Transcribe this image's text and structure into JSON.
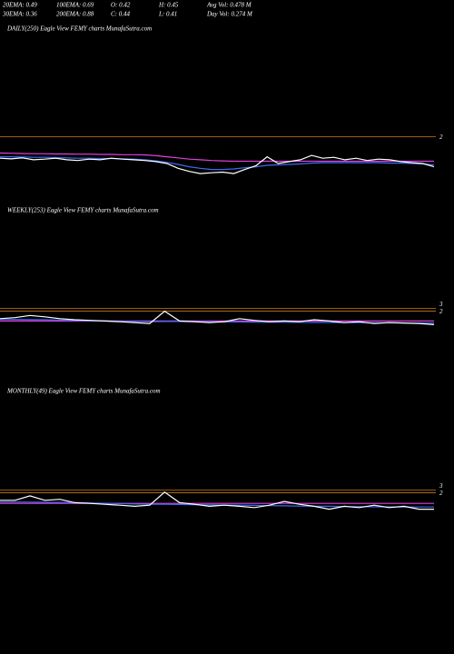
{
  "header": {
    "row1": [
      "20EMA: 0.49",
      "100EMA: 0.69",
      "O: 0.42",
      "H: 0.45",
      "Avg Vol: 0.478  M"
    ],
    "row2": [
      "30EMA: 0.36",
      "200EMA: 0.88",
      "C: 0.44",
      "L: 0.41",
      "Day Vol: 0.274  M"
    ]
  },
  "chart_data": [
    {
      "type": "line",
      "title": "DAILY(250) Eagle   View  FEMY charts MunafaSutra.com",
      "log_scale": true,
      "ylim": [
        0.06,
        800
      ],
      "yticks": [
        2
      ],
      "grid": true,
      "grid_color": "#c87a1e",
      "series": [
        {
          "color": "#e040e0",
          "values": [
            0.75,
            0.74,
            0.73,
            0.72,
            0.72,
            0.71,
            0.71,
            0.7,
            0.7,
            0.69,
            0.69,
            0.68,
            0.68,
            0.67,
            0.64,
            0.6,
            0.56,
            0.52,
            0.5,
            0.48,
            0.47,
            0.46,
            0.46,
            0.46,
            0.46,
            0.46,
            0.46,
            0.46,
            0.46,
            0.46,
            0.46,
            0.46,
            0.46,
            0.46,
            0.46,
            0.46,
            0.46,
            0.46,
            0.46,
            0.46
          ]
        },
        {
          "color": "#3a6df0",
          "values": [
            0.6,
            0.6,
            0.59,
            0.58,
            0.58,
            0.57,
            0.56,
            0.55,
            0.55,
            0.54,
            0.54,
            0.53,
            0.52,
            0.5,
            0.47,
            0.43,
            0.38,
            0.33,
            0.3,
            0.28,
            0.28,
            0.29,
            0.31,
            0.33,
            0.36,
            0.37,
            0.38,
            0.39,
            0.41,
            0.42,
            0.42,
            0.42,
            0.42,
            0.42,
            0.42,
            0.41,
            0.41,
            0.4,
            0.39,
            0.37
          ]
        },
        {
          "color": "#ffffff",
          "values": [
            0.55,
            0.53,
            0.56,
            0.5,
            0.52,
            0.55,
            0.5,
            0.48,
            0.52,
            0.5,
            0.55,
            0.52,
            0.5,
            0.48,
            0.45,
            0.4,
            0.3,
            0.25,
            0.22,
            0.23,
            0.24,
            0.22,
            0.28,
            0.35,
            0.6,
            0.4,
            0.45,
            0.5,
            0.65,
            0.55,
            0.58,
            0.5,
            0.55,
            0.48,
            0.52,
            0.5,
            0.45,
            0.42,
            0.4,
            0.33
          ]
        }
      ]
    },
    {
      "type": "line",
      "title": "WEEKLY(253) Eagle   View  FEMY charts MunafaSutra.com",
      "log_scale": true,
      "ylim": [
        0.0001,
        1000000
      ],
      "yticks": [
        2,
        3
      ],
      "grid": true,
      "grid_color": "#c87a1e",
      "series": [
        {
          "color": "#e040e0",
          "values": [
            0.5,
            0.5,
            0.5,
            0.5,
            0.5,
            0.5,
            0.5,
            0.5,
            0.5,
            0.5,
            0.5,
            0.5,
            0.5,
            0.5,
            0.5,
            0.5,
            0.5,
            0.5,
            0.5,
            0.5,
            0.5,
            0.5,
            0.5,
            0.5,
            0.5,
            0.5,
            0.5,
            0.5,
            0.5,
            0.5
          ]
        },
        {
          "color": "#3a6df0",
          "values": [
            0.62,
            0.62,
            0.61,
            0.6,
            0.58,
            0.55,
            0.52,
            0.5,
            0.48,
            0.47,
            0.46,
            0.47,
            0.47,
            0.46,
            0.45,
            0.44,
            0.44,
            0.43,
            0.43,
            0.42,
            0.42,
            0.41,
            0.41,
            0.4,
            0.4,
            0.39,
            0.39,
            0.38,
            0.38,
            0.38
          ]
        },
        {
          "color": "#ffffff",
          "values": [
            0.7,
            0.8,
            1.1,
            0.9,
            0.7,
            0.6,
            0.55,
            0.5,
            0.45,
            0.4,
            0.35,
            2,
            0.5,
            0.45,
            0.4,
            0.45,
            0.7,
            0.55,
            0.45,
            0.5,
            0.45,
            0.6,
            0.5,
            0.4,
            0.45,
            0.35,
            0.4,
            0.38,
            0.35,
            0.3
          ]
        }
      ]
    },
    {
      "type": "line",
      "title": "MONTHLY(49) Eagle   View  FEMY charts MunafaSutra.com",
      "log_scale": true,
      "ylim": [
        0.0001,
        1000000
      ],
      "yticks": [
        2,
        3
      ],
      "grid": true,
      "grid_color": "#c87a1e",
      "series": [
        {
          "color": "#e040e0",
          "values": [
            0.45,
            0.45,
            0.45,
            0.45,
            0.45,
            0.45,
            0.45,
            0.45,
            0.45,
            0.45,
            0.45,
            0.45,
            0.45,
            0.45,
            0.45,
            0.45,
            0.45,
            0.45,
            0.45,
            0.45,
            0.45,
            0.45,
            0.45,
            0.45,
            0.45,
            0.45,
            0.45,
            0.45,
            0.45,
            0.45
          ]
        },
        {
          "color": "#3a6df0",
          "values": [
            0.55,
            0.55,
            0.54,
            0.53,
            0.52,
            0.5,
            0.48,
            0.46,
            0.44,
            0.42,
            0.4,
            0.4,
            0.39,
            0.38,
            0.37,
            0.36,
            0.35,
            0.34,
            0.33,
            0.32,
            0.31,
            0.3,
            0.3,
            0.29,
            0.29,
            0.28,
            0.28,
            0.27,
            0.27,
            0.27
          ]
        },
        {
          "color": "#ffffff",
          "values": [
            0.7,
            0.7,
            1.3,
            0.7,
            0.8,
            0.5,
            0.45,
            0.4,
            0.35,
            0.3,
            0.35,
            2.2,
            0.5,
            0.4,
            0.3,
            0.35,
            0.3,
            0.25,
            0.35,
            0.6,
            0.4,
            0.3,
            0.2,
            0.3,
            0.25,
            0.35,
            0.25,
            0.3,
            0.2,
            0.2
          ]
        }
      ]
    }
  ]
}
